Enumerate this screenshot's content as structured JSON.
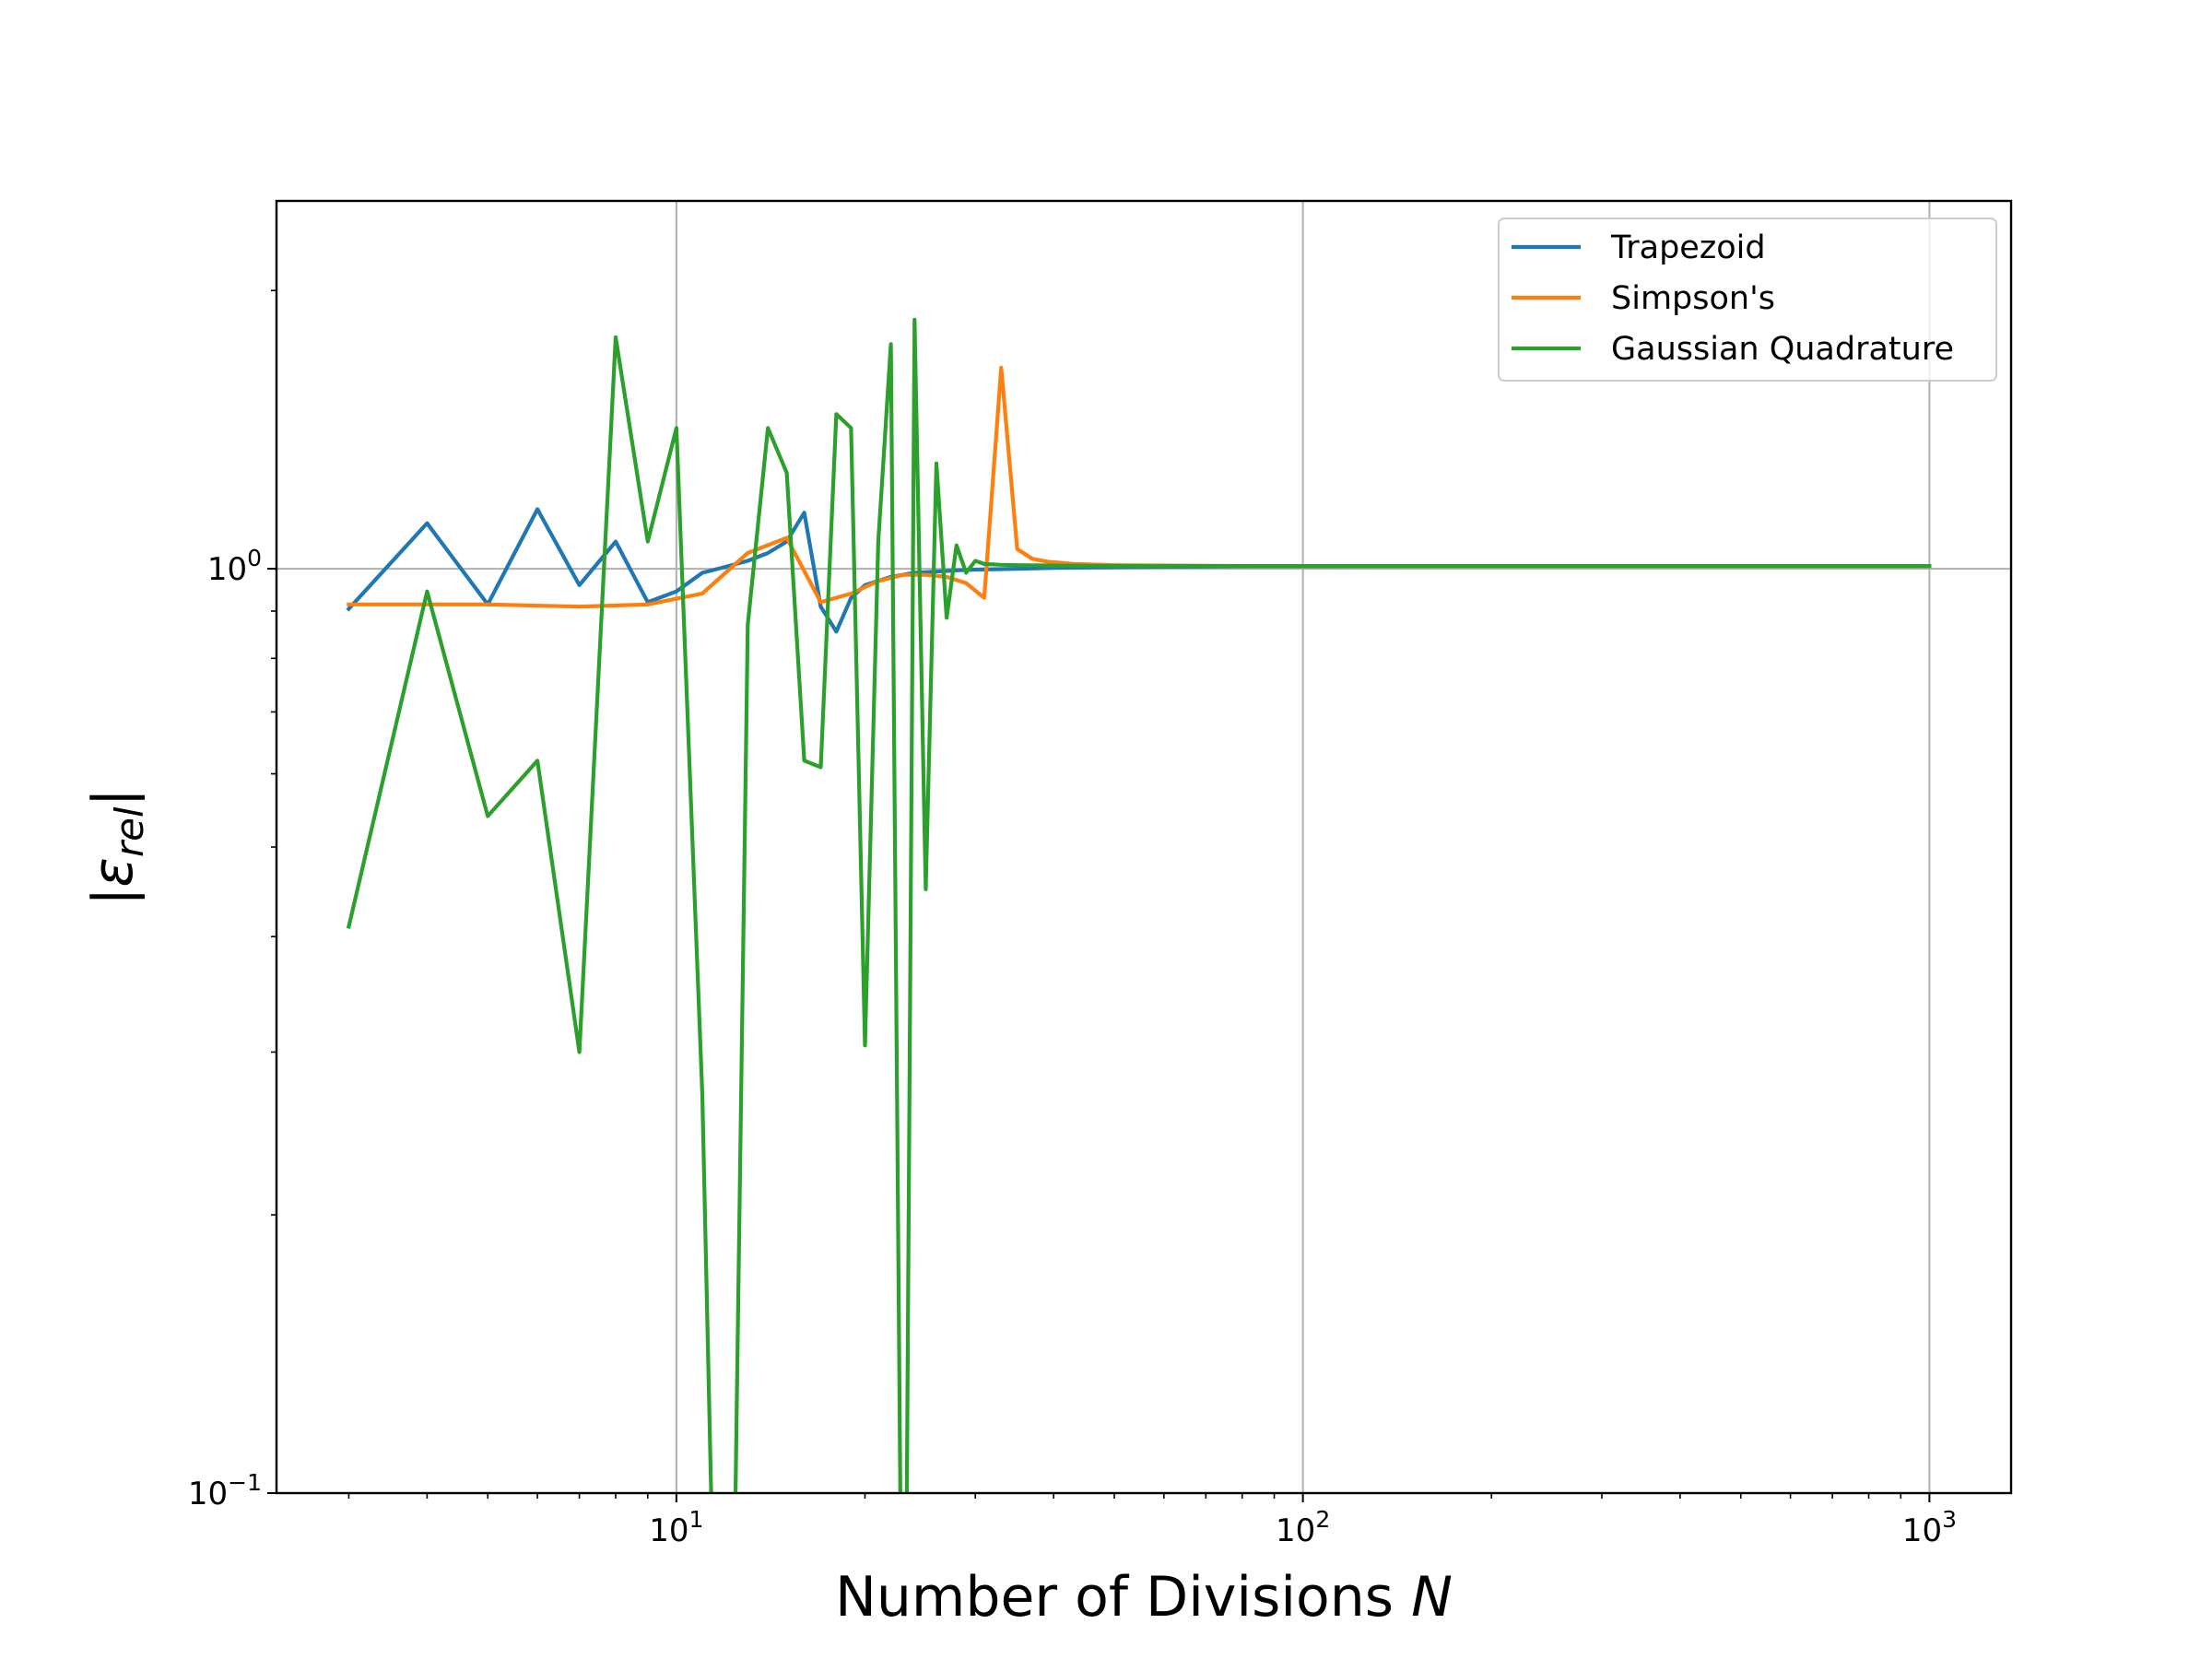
{
  "chart_data": {
    "type": "line",
    "xlabel": "Number of Divisions",
    "xlabel_var": "N",
    "ylabel_var": "ε",
    "ylabel_sub": "rel",
    "xscale": "log",
    "yscale": "log",
    "xlim": [
      2.3,
      1350
    ],
    "ylim": [
      0.1,
      2.5
    ],
    "grid": true,
    "legend_position": "top-right",
    "x_ticks": [
      {
        "base": "10",
        "exp": "1",
        "value": 10
      },
      {
        "base": "10",
        "exp": "2",
        "value": 100
      },
      {
        "base": "10",
        "exp": "3",
        "value": 1000
      }
    ],
    "y_ticks": [
      {
        "base": "10",
        "exp": "−1",
        "value": 0.1
      },
      {
        "base": "10",
        "exp": "0",
        "value": 1
      }
    ],
    "series": [
      {
        "name": "Trapezoid",
        "color": "#1f77b4",
        "x": [
          3,
          4,
          5,
          6,
          7,
          8,
          9,
          10,
          11,
          12,
          13,
          14,
          15,
          16,
          17,
          18,
          19,
          20,
          22,
          24,
          26,
          28,
          30,
          35,
          40,
          50,
          60,
          80,
          100,
          200,
          500,
          1000
        ],
        "y": [
          0.905,
          1.12,
          0.915,
          1.16,
          0.96,
          1.07,
          0.92,
          0.945,
          0.99,
          1.005,
          1.02,
          1.04,
          1.07,
          1.15,
          0.91,
          0.855,
          0.93,
          0.96,
          0.98,
          0.99,
          0.993,
          0.996,
          0.998,
          1.0,
          1.002,
          1.004,
          1.005,
          1.006,
          1.006,
          1.007,
          1.007,
          1.007
        ]
      },
      {
        "name": "Simpson's",
        "color": "#ff7f0e",
        "x": [
          3,
          5,
          7,
          9,
          11,
          13,
          15,
          17,
          19,
          21,
          23,
          25,
          27,
          29,
          31,
          33,
          35,
          37,
          39,
          43,
          50,
          60,
          80,
          100,
          200,
          500,
          1000
        ],
        "y": [
          0.915,
          0.915,
          0.91,
          0.915,
          0.94,
          1.04,
          1.08,
          0.92,
          0.94,
          0.97,
          0.985,
          0.985,
          0.98,
          0.965,
          0.93,
          1.65,
          1.05,
          1.025,
          1.018,
          1.012,
          1.009,
          1.008,
          1.007,
          1.007,
          1.007,
          1.007,
          1.007
        ]
      },
      {
        "name": "Gaussian Quadrature",
        "color": "#2ca02c",
        "x": [
          3,
          4,
          5,
          6,
          7,
          8,
          9,
          10,
          11,
          11.4,
          11.9,
          12.4,
          13,
          14,
          15,
          16,
          17,
          18,
          19,
          20,
          21,
          22,
          22.8,
          23.3,
          24,
          25,
          26,
          27,
          28,
          29,
          30,
          31,
          33,
          35,
          40,
          50,
          60,
          80,
          100,
          200,
          500,
          1000
        ],
        "y": [
          0.41,
          0.945,
          0.54,
          0.62,
          0.3,
          1.78,
          1.07,
          1.42,
          0.27,
          0.09,
          0.09,
          0.09,
          0.87,
          1.42,
          1.27,
          0.62,
          0.61,
          1.47,
          1.42,
          0.305,
          1.07,
          1.75,
          0.09,
          0.09,
          1.86,
          0.45,
          1.3,
          0.885,
          1.06,
          0.99,
          1.02,
          1.012,
          1.01,
          1.009,
          1.008,
          1.007,
          1.007,
          1.007,
          1.007,
          1.007,
          1.007,
          1.007
        ]
      }
    ]
  }
}
